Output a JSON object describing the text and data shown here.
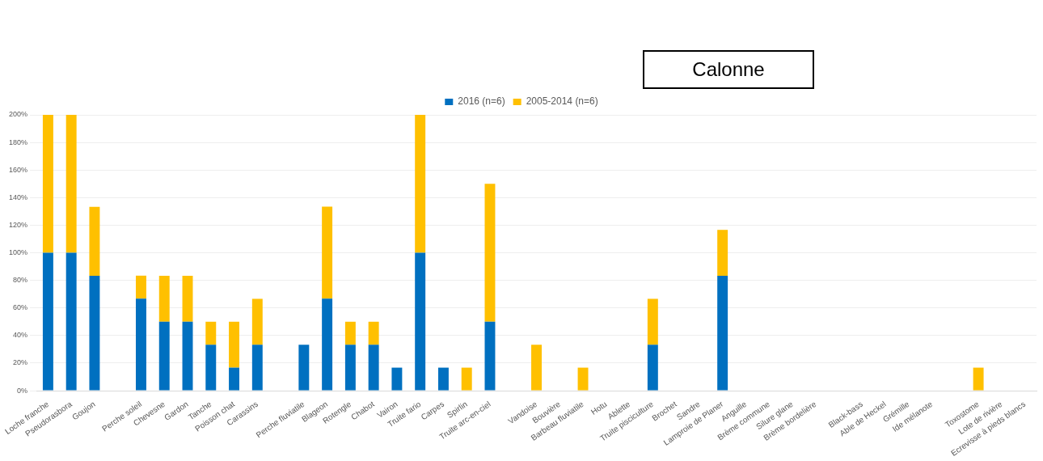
{
  "chart_data": {
    "type": "bar",
    "title": "Calonne",
    "stacked": true,
    "grid": "y",
    "legend": "top",
    "categories": [
      "Loche franche",
      "Pseudorasbora",
      "Goujon",
      null,
      "Perche soleil",
      "Chevesne",
      "Gardon",
      "Tanche",
      "Poisson chat",
      "Carassins",
      null,
      "Perche fluviatile",
      "Blageon",
      "Rotengle",
      "Chabot",
      "Vairon",
      "Truite fario",
      "Carpes",
      "Spirlin",
      "Truite arc-en-ciel",
      null,
      "Vandoise",
      "Bouvière",
      "Barbeau fluviatile",
      "Hotu",
      "Ablette",
      "Truite pisciculture",
      "Brochet",
      "Sandre",
      "Lamproie de Planer",
      "Anguille",
      "Brème commune",
      "Silure glane",
      "Brème bordelière",
      null,
      "Black-bass",
      "Able de Heckel",
      "Grémille",
      "Ide mélanote",
      null,
      "Toxostome",
      "Lote de rivière",
      "Ecrevisse à pieds blancs"
    ],
    "series": [
      {
        "name": "2016 (n=6)",
        "color": "#0070c0",
        "values": [
          100,
          100,
          83.3,
          null,
          66.7,
          50,
          50,
          33.3,
          16.7,
          33.3,
          null,
          33.3,
          66.7,
          33.3,
          33.3,
          16.7,
          100,
          16.7,
          0,
          50,
          null,
          0,
          0,
          0,
          0,
          0,
          33.3,
          0,
          0,
          83.3,
          0,
          0,
          0,
          0,
          null,
          0,
          0,
          0,
          0,
          null,
          0,
          0,
          0
        ]
      },
      {
        "name": "2005-2014 (n=6)",
        "color": "#ffc000",
        "values": [
          100,
          100,
          50,
          null,
          16.7,
          33.3,
          33.3,
          16.7,
          33.3,
          33.3,
          null,
          0,
          66.7,
          16.7,
          16.7,
          0,
          100,
          0,
          16.7,
          100,
          null,
          33.3,
          0,
          16.7,
          0,
          0,
          33.3,
          0,
          0,
          33.3,
          0,
          0,
          0,
          0,
          null,
          0,
          0,
          0,
          0,
          null,
          16.7,
          0,
          0
        ]
      }
    ],
    "ylim": [
      0,
      200
    ],
    "yticks": [
      {
        "value": 0,
        "label": "0%"
      },
      {
        "value": 20,
        "label": "20%"
      },
      {
        "value": 40,
        "label": "40%"
      },
      {
        "value": 60,
        "label": "60%"
      },
      {
        "value": 80,
        "label": "80%"
      },
      {
        "value": 100,
        "label": "100%"
      },
      {
        "value": 120,
        "label": "120%"
      },
      {
        "value": 140,
        "label": "140%"
      },
      {
        "value": 160,
        "label": "160%"
      },
      {
        "value": 180,
        "label": "180%"
      },
      {
        "value": 200,
        "label": "200%"
      }
    ]
  }
}
